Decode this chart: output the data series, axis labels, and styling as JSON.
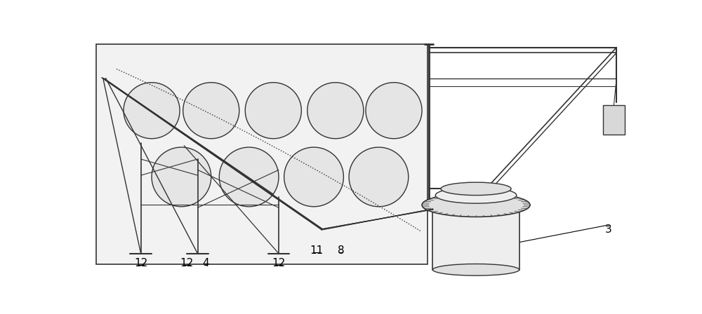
{
  "lc": "#333333",
  "lc2": "#555555",
  "bg": "#ffffff",
  "panel_fill": "#f2f2f2",
  "circle_fill": "#e5e5e5",
  "cyl_fill": "#eeeeee",
  "cyl_fill2": "#e0e0e0",
  "box_fill": "#d8d8d8"
}
